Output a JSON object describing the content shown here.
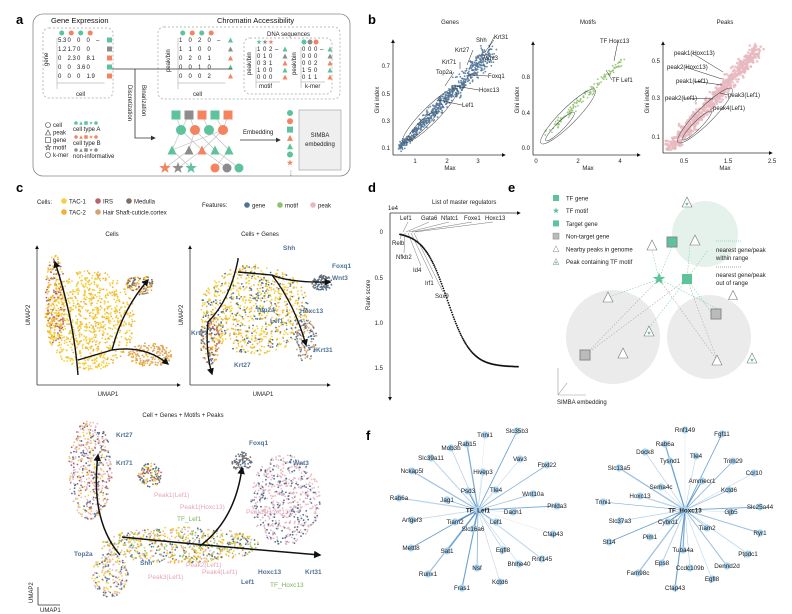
{
  "panel_labels": {
    "a": "a",
    "b": "b",
    "c": "c",
    "d": "d",
    "e": "e",
    "f": "f"
  },
  "colors": {
    "type_a": "#5cc39b",
    "type_b": "#f4845f",
    "non_informative": "#8c8c8c",
    "tac1": "#f5d142",
    "tac2": "#f0b030",
    "irs": "#b5646b",
    "hair_shaft": "#d4a373",
    "medulla": "#7e6e66",
    "gene": "#4f7396",
    "motif": "#8cc26b",
    "peak": "#e8b9c0",
    "tf_green": "#5cc39b"
  },
  "panel_a": {
    "gene_expression_title": "Gene Expression",
    "chromatin_title": "Chromatin Accessibility",
    "dna_title": "DNA sequences",
    "gene_axis": "gene",
    "cell_axis": "cell",
    "peak_axis": "peak/bin",
    "cell_axis2": "cell",
    "motif_axis": "motif",
    "kmer_axis": "k-mer",
    "peak_axis2": "peak/bin",
    "peak_axis3": "peak/bin",
    "gene_matrix": [
      [
        "5.3",
        "0",
        "0",
        "0",
        "–"
      ],
      [
        "1.2",
        "1.7",
        "0",
        "0",
        ""
      ],
      [
        "0",
        "2.3",
        "0",
        "8.1",
        ""
      ],
      [
        "0",
        "0",
        "3.6",
        "0",
        ""
      ],
      [
        "0",
        "0",
        "0",
        "1.9",
        ""
      ]
    ],
    "peak_matrix": [
      [
        "1",
        "0",
        "2",
        "0",
        "–"
      ],
      [
        "1",
        "1",
        "0",
        "0",
        ""
      ],
      [
        "0",
        "2",
        "0",
        "1",
        ""
      ],
      [
        "0",
        "0",
        "1",
        "0",
        ""
      ],
      [
        "0",
        "0",
        "0",
        "2",
        ""
      ]
    ],
    "motif_matrix": [
      [
        "1",
        "0",
        "2",
        "–"
      ],
      [
        "0",
        "1",
        "0",
        ""
      ],
      [
        "0",
        "3",
        "1",
        ""
      ],
      [
        "1",
        "0",
        "0",
        ""
      ],
      [
        "0",
        "0",
        "0",
        ""
      ]
    ],
    "kmer_matrix": [
      [
        "0",
        "0",
        "0",
        "–"
      ],
      [
        "0",
        "0",
        "0",
        ""
      ],
      [
        "0",
        "0",
        "2",
        ""
      ],
      [
        "1",
        "5",
        "0",
        ""
      ],
      [
        "0",
        "1",
        "1",
        ""
      ]
    ],
    "discretization": "Discretization",
    "binarization": "Binarization",
    "embedding": "Embedding",
    "simba_box_line1": "SIMBA",
    "simba_box_line2": "embedding",
    "legend_shapes": [
      "cell",
      "peak",
      "gene",
      "motif",
      "k-mer"
    ],
    "legend_types": [
      "cell type A",
      "cell type B",
      "non-informative"
    ]
  },
  "panel_b": {
    "plots": [
      {
        "title": "Genes",
        "xlabel": "Max",
        "ylabel": "Gini index",
        "xticks": [
          "1",
          "2",
          "3"
        ],
        "yticks": [
          "0.7",
          "0.5",
          "0.3",
          "0.1"
        ],
        "labels": [
          "Krt31",
          "Shh",
          "Krt27",
          "Wnt3",
          "Krt71",
          "Foxq1",
          "Top2a",
          "Hoxc13",
          "Lef1"
        ]
      },
      {
        "title": "Motifs",
        "xlabel": "Max",
        "ylabel": "Gini index",
        "xticks": [
          "0",
          "2",
          "4"
        ],
        "yticks": [
          "0.8",
          "0.4",
          "0.0"
        ],
        "labels": [
          "TF Hoxc13",
          "TF Lef1"
        ]
      },
      {
        "title": "Peaks",
        "xlabel": "Max",
        "ylabel": "Gini index",
        "xticks": [
          "0.5",
          "1.5",
          "2.5"
        ],
        "yticks": [
          "0.5",
          "0.3",
          "0.1"
        ],
        "labels": [
          "peak1(Hoxc13)",
          "peak2(Hoxc13)",
          "peak1(Lef1)",
          "peak3(Lef1)",
          "peak2(Lef1)",
          "peak4(Lef1)"
        ]
      }
    ]
  },
  "panel_c": {
    "cells_label": "Cells:",
    "cell_types": [
      "TAC-1",
      "IRS",
      "Medulla",
      "TAC-2",
      "Hair Shaft-cuticle.cortex"
    ],
    "features_label": "Features:",
    "features": [
      "gene",
      "motif",
      "peak"
    ],
    "plot1_title": "Cells",
    "plot2_title": "Cells + Genes",
    "plot3_title": "Cell + Genes + Motifs + Peaks",
    "xlabel": "UMAP1",
    "ylabel": "UMAP2",
    "plot2_genes": [
      "Shh",
      "Foxq1",
      "Wnt3",
      "Top2a",
      "Hoxc13",
      "Lef1",
      "Krt71",
      "Krt31",
      "Krt27"
    ],
    "plot3_genes": [
      "Krt27",
      "Krt71",
      "Foxq1",
      "Wnt3",
      "Top2a",
      "Shh",
      "Hoxc13",
      "Krt31",
      "Lef1"
    ],
    "plot3_peaks": [
      "Peak1(Lef1)",
      "Peak1(Hoxc13)",
      "Peak2(Hoxc13)",
      "Peak2(Lef1)",
      "Peak3(Lef1)",
      "Peak4(Lef1)"
    ],
    "plot3_motifs": [
      "TF_Lef1",
      "TF_Hoxc13"
    ]
  },
  "panel_d": {
    "title": "List of master regulators",
    "multiplier": "1e4",
    "ylabel": "Rank score",
    "yticks": [
      "0",
      "0.5",
      "1.0",
      "1.5"
    ],
    "regulators_top": [
      "Lef1",
      "Gata6",
      "Nfatc1",
      "Foxe1",
      "Hoxc13"
    ],
    "regulators_side": [
      "Relb",
      "Nfkb2",
      "Id4",
      "Irf1",
      "Sox9"
    ]
  },
  "panel_e": {
    "legend": [
      "TF gene",
      "TF motif",
      "Target gene",
      "Non-target gene",
      "Nearby peaks in genome",
      "Peak containing TF motif"
    ],
    "line_within": "nearest gene/peak",
    "line_within2": "within range",
    "line_out": "nearest gene/peak",
    "line_out2": "out of range",
    "axis_label": "SIMBA embedding"
  },
  "panel_f": {
    "lef1_center": "TF_Lef1",
    "lef1_nodes": [
      "Tnni1",
      "Slc35b3",
      "Rab15",
      "Mob3b",
      "Slc39a11",
      "Vav3",
      "Fbxl22",
      "Nckap5l",
      "Hivep3",
      "Psd3",
      "Tle4",
      "Wnt10a",
      "Rab6a",
      "Jag1",
      "Phlda3",
      "Dach1",
      "Arfgef3",
      "Tiam2",
      "Lef1",
      "Slc16a6",
      "Cfap43",
      "Mettl8",
      "Sat1",
      "Egfl8",
      "Rnf145",
      "Bhlhe40",
      "Nsf",
      "Runx1",
      "Kctd6",
      "Fras1"
    ],
    "hoxc13_center": "TF_Hoxc13",
    "hoxc13_nodes": [
      "Rnf149",
      "Fgf11",
      "Rab6a",
      "Dock8",
      "Tysnd1",
      "Tle4",
      "Trim29",
      "Slc13a5",
      "Ccr10",
      "Ammecr1",
      "Sema4c",
      "Kctd6",
      "Hoxc13",
      "Tnni1",
      "Slc25a44",
      "Gjb5",
      "Slc37a3",
      "Cybrd1",
      "Tiam2",
      "Ryr1",
      "Pim1",
      "St14",
      "Tuba4a",
      "Ptpdc1",
      "Eps8",
      "Ccdc109b",
      "Dennd2d",
      "Fam98c",
      "Egfl8",
      "Cfap43"
    ]
  }
}
